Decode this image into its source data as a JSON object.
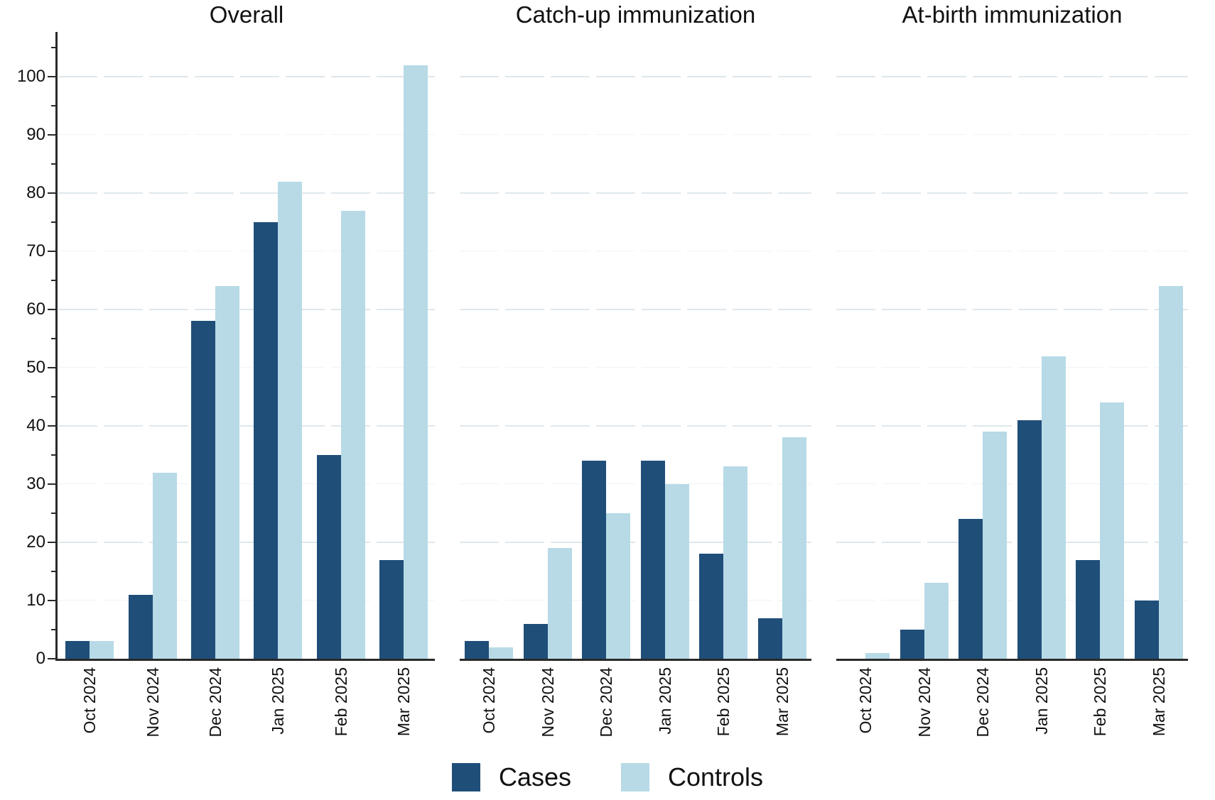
{
  "chart_data": {
    "type": "bar",
    "layout": "three side-by-side grouped-bar panels sharing one y-axis",
    "categories": [
      "Oct 2024",
      "Nov 2024",
      "Dec 2024",
      "Jan 2025",
      "Feb 2025",
      "Mar 2025"
    ],
    "series_names": [
      "Cases",
      "Controls"
    ],
    "panels": [
      {
        "title": "Overall",
        "series": [
          {
            "name": "Cases",
            "values": [
              3,
              11,
              58,
              75,
              35,
              17
            ]
          },
          {
            "name": "Controls",
            "values": [
              3,
              32,
              64,
              82,
              77,
              102
            ]
          }
        ]
      },
      {
        "title": "Catch-up immunization",
        "series": [
          {
            "name": "Cases",
            "values": [
              3,
              6,
              34,
              34,
              18,
              7
            ]
          },
          {
            "name": "Controls",
            "values": [
              2,
              19,
              25,
              30,
              33,
              38
            ]
          }
        ]
      },
      {
        "title": "At-birth immunization",
        "series": [
          {
            "name": "Cases",
            "values": [
              0,
              5,
              24,
              41,
              17,
              10
            ]
          },
          {
            "name": "Controls",
            "values": [
              1,
              13,
              39,
              52,
              44,
              64
            ]
          }
        ]
      }
    ],
    "ylim": [
      0,
      108
    ],
    "yticks": [
      0,
      10,
      20,
      30,
      40,
      50,
      60,
      70,
      80,
      90,
      100
    ],
    "grid": {
      "horizontal": true,
      "every": 10,
      "style": "dashed",
      "shown": true
    },
    "legend": {
      "position": "bottom-center",
      "entries": [
        {
          "label": "Cases",
          "color": "#1f4e79"
        },
        {
          "label": "Controls",
          "color": "#b7dae6"
        }
      ]
    }
  },
  "colors": {
    "cases": "#1f4e79",
    "controls": "#b7dae6",
    "axis": "#2a2a2a",
    "grid_major": "#dfe8ed",
    "grid_minor": "#eff4f7",
    "background": "#ffffff",
    "text": "#111111"
  }
}
